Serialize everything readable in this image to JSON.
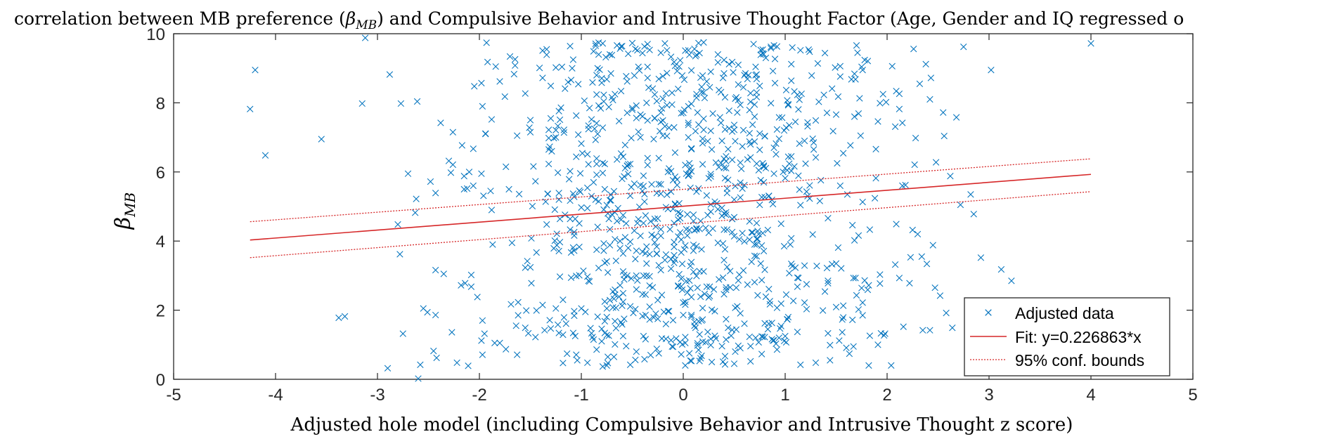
{
  "chart_data": {
    "type": "scatter",
    "title_prefix": "correlation between MB preference (",
    "title_symbol": "β",
    "title_subscript": "MB",
    "title_suffix": ") and Compulsive Behavior and Intrusive Thought Factor (Age, Gender and IQ regressed o",
    "xlabel": "Adjusted hole model (including Compulsive Behavior and Intrusive Thought z score)",
    "ylabel_symbol": "β",
    "ylabel_subscript": "MB",
    "xlim": [
      -5,
      5
    ],
    "ylim": [
      0,
      10
    ],
    "xticks": [
      -5,
      -4,
      -3,
      -2,
      -1,
      0,
      1,
      2,
      3,
      4,
      5
    ],
    "yticks": [
      0,
      2,
      4,
      6,
      8,
      10
    ],
    "grid": false,
    "legend_position": "bottom-right",
    "legend": {
      "data": "Adjusted data",
      "fit": "Fit: y=0.226863*x",
      "bounds": "95% conf. bounds"
    },
    "colors": {
      "points": "#0072BD",
      "fit": "#D62728",
      "axes": "#262626"
    },
    "fit": {
      "x": [
        -4.25,
        4.0
      ],
      "y": [
        4.03,
        5.93
      ],
      "upper": [
        4.56,
        6.38
      ],
      "lower": [
        3.52,
        5.43
      ]
    },
    "series": [
      {
        "name": "Adjusted data",
        "points": [
          [
            -4.25,
            7.82
          ],
          [
            -4.2,
            8.95
          ],
          [
            -4.1,
            6.48
          ],
          [
            -3.55,
            6.95
          ],
          [
            -3.38,
            1.78
          ],
          [
            -3.32,
            1.82
          ],
          [
            -3.15,
            7.98
          ],
          [
            -2.88,
            8.82
          ],
          [
            -2.8,
            4.48
          ],
          [
            -2.78,
            3.62
          ],
          [
            -2.7,
            5.95
          ],
          [
            -2.62,
            5.22
          ],
          [
            -2.58,
            0.42
          ],
          [
            -2.6,
            0.02
          ],
          [
            -2.55,
            2.05
          ],
          [
            -2.9,
            0.32
          ],
          [
            -2.75,
            1.32
          ],
          [
            -2.48,
            5.72
          ],
          [
            -2.45,
            0.82
          ],
          [
            -2.42,
            0.62
          ],
          [
            -2.38,
            7.42
          ],
          [
            -2.35,
            3.05
          ],
          [
            -2.3,
            6.32
          ],
          [
            -2.28,
            5.98
          ],
          [
            -2.22,
            0.48
          ],
          [
            -2.18,
            2.72
          ],
          [
            -2.12,
            5.52
          ],
          [
            -2.05,
            8.48
          ],
          [
            -1.98,
            5.95
          ],
          [
            -1.92,
            9.18
          ],
          [
            -1.88,
            7.52
          ],
          [
            -2.02,
            2.38
          ],
          [
            -1.95,
            1.32
          ],
          [
            -1.85,
            1.05
          ],
          [
            -1.8,
            8.62
          ],
          [
            -3.12,
            9.88
          ],
          [
            2.68,
            7.58
          ],
          [
            2.72,
            5.05
          ],
          [
            2.75,
            9.62
          ],
          [
            2.82,
            5.35
          ],
          [
            2.85,
            4.78
          ],
          [
            3.02,
            8.95
          ],
          [
            3.12,
            3.18
          ],
          [
            3.22,
            2.85
          ],
          [
            2.92,
            3.52
          ],
          [
            2.62,
            5.88
          ],
          [
            2.58,
            1.92
          ],
          [
            2.55,
            7.72
          ],
          [
            2.48,
            6.28
          ],
          [
            2.52,
            2.42
          ],
          [
            2.45,
            3.88
          ],
          [
            2.38,
            9.12
          ],
          [
            2.35,
            1.42
          ],
          [
            2.32,
            8.55
          ],
          [
            2.28,
            6.98
          ],
          [
            2.25,
            4.32
          ],
          [
            2.22,
            2.78
          ],
          [
            2.18,
            5.62
          ],
          [
            2.12,
            7.82
          ],
          [
            2.08,
            3.32
          ],
          [
            4.0,
            9.72
          ],
          [
            2.42,
            1.42
          ]
        ],
        "cluster_center": [
          0.0,
          5.0
        ],
        "cluster_count": 1050,
        "cluster_seed": 20240517
      }
    ]
  }
}
